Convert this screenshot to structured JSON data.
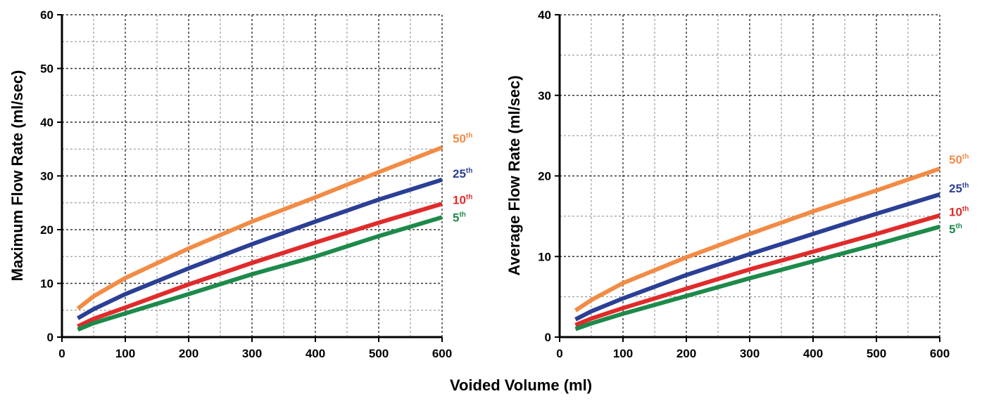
{
  "xlabel": "Voided Volume (ml)",
  "colors": {
    "50th": "#f28b45",
    "25th": "#2b3f95",
    "10th": "#e02b2b",
    "5th": "#1d8a4a"
  },
  "chart_data": [
    {
      "type": "line",
      "ylabel": "Maximum Flow Rate (ml/sec)",
      "xlim": [
        0,
        600
      ],
      "ylim": [
        0,
        60
      ],
      "xticks": [
        0,
        100,
        200,
        300,
        400,
        500,
        600
      ],
      "yticks": [
        0,
        10,
        20,
        30,
        40,
        50,
        60
      ],
      "xtick_labels": [
        "0",
        "100",
        "200",
        "300",
        "400",
        "500",
        "600"
      ],
      "ytick_labels": [
        "0",
        "10",
        "20",
        "30",
        "40",
        "50",
        "60"
      ],
      "grid": true,
      "series": [
        {
          "name": "50",
          "suffix": "th",
          "color": "#f28b45",
          "x": [
            25,
            50,
            100,
            200,
            300,
            400,
            500,
            600
          ],
          "y": [
            5.3,
            7.6,
            11.0,
            16.5,
            21.5,
            26.0,
            30.7,
            35.3
          ]
        },
        {
          "name": "25",
          "suffix": "th",
          "color": "#2b3f95",
          "x": [
            25,
            50,
            100,
            200,
            300,
            400,
            500,
            600
          ],
          "y": [
            3.5,
            5.2,
            8.0,
            12.8,
            17.3,
            21.5,
            25.6,
            29.3
          ]
        },
        {
          "name": "10",
          "suffix": "th",
          "color": "#e02b2b",
          "x": [
            25,
            50,
            100,
            200,
            300,
            400,
            500,
            600
          ],
          "y": [
            2.0,
            3.4,
            5.5,
            9.8,
            13.8,
            17.6,
            21.3,
            24.8
          ]
        },
        {
          "name": "5",
          "suffix": "th",
          "color": "#1d8a4a",
          "x": [
            25,
            50,
            100,
            200,
            300,
            400,
            500,
            600
          ],
          "y": [
            1.4,
            2.6,
            4.4,
            8.0,
            11.7,
            15.0,
            18.8,
            22.3
          ]
        }
      ]
    },
    {
      "type": "line",
      "ylabel": "Average Flow Rate (ml/sec)",
      "xlim": [
        0,
        600
      ],
      "ylim": [
        0,
        40
      ],
      "xticks": [
        0,
        100,
        200,
        300,
        400,
        500,
        600
      ],
      "yticks": [
        0,
        10,
        20,
        30,
        40
      ],
      "xtick_labels": [
        "0",
        "100",
        "200",
        "300",
        "400",
        "500",
        "600"
      ],
      "ytick_labels": [
        "0",
        "10",
        "20",
        "30",
        "40"
      ],
      "grid": true,
      "series": [
        {
          "name": "50",
          "suffix": "th",
          "color": "#f28b45",
          "x": [
            25,
            50,
            100,
            200,
            300,
            400,
            500,
            600
          ],
          "y": [
            3.3,
            4.6,
            6.7,
            9.9,
            12.8,
            15.6,
            18.2,
            20.9
          ]
        },
        {
          "name": "25",
          "suffix": "th",
          "color": "#2b3f95",
          "x": [
            25,
            50,
            100,
            200,
            300,
            400,
            500,
            600
          ],
          "y": [
            2.2,
            3.2,
            4.8,
            7.7,
            10.3,
            12.8,
            15.3,
            17.7
          ]
        },
        {
          "name": "10",
          "suffix": "th",
          "color": "#e02b2b",
          "x": [
            25,
            50,
            100,
            200,
            300,
            400,
            500,
            600
          ],
          "y": [
            1.5,
            2.3,
            3.6,
            6.0,
            8.4,
            10.6,
            12.8,
            15.1
          ]
        },
        {
          "name": "5",
          "suffix": "th",
          "color": "#1d8a4a",
          "x": [
            25,
            50,
            100,
            200,
            300,
            400,
            500,
            600
          ],
          "y": [
            1.0,
            1.7,
            2.9,
            5.1,
            7.3,
            9.4,
            11.5,
            13.7
          ]
        }
      ]
    }
  ]
}
